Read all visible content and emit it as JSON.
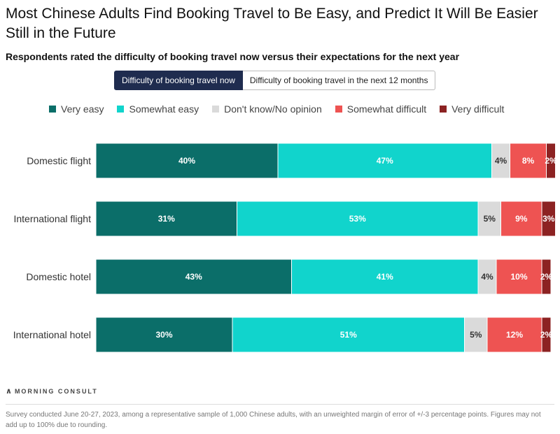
{
  "title": "Most Chinese Adults Find Booking Travel to Be Easy, and Predict It Will Be Easier Still in the Future",
  "subtitle": "Respondents rated the difficulty of booking travel now versus their expectations for the next year",
  "tabs": [
    {
      "label": "Difficulty of booking travel now",
      "active": true
    },
    {
      "label": "Difficulty of booking travel in the next 12 months",
      "active": false
    }
  ],
  "chart_data": {
    "type": "bar",
    "orientation": "horizontal",
    "stacked": true,
    "categories": [
      "Domestic flight",
      "International flight",
      "Domestic hotel",
      "International hotel"
    ],
    "series": [
      {
        "name": "Very easy",
        "color": "#0b6e69",
        "values": [
          40,
          31,
          43,
          30
        ]
      },
      {
        "name": "Somewhat easy",
        "color": "#11d4cc",
        "values": [
          47,
          53,
          41,
          51
        ]
      },
      {
        "name": "Don't know/No opinion",
        "color": "#dadada",
        "values": [
          4,
          5,
          4,
          5
        ]
      },
      {
        "name": "Somewhat difficult",
        "color": "#ee5352",
        "values": [
          8,
          9,
          10,
          12
        ]
      },
      {
        "name": "Very difficult",
        "color": "#8c2222",
        "values": [
          2,
          3,
          2,
          2
        ]
      }
    ],
    "value_suffix": "%",
    "legend_position": "top",
    "xlim": [
      0,
      100
    ],
    "grid": false
  },
  "brand": "MORNING CONSULT",
  "footnote": "Survey conducted June 20-27, 2023, among a representative sample of 1,000 Chinese adults, with an unweighted margin of error of +/-3 percentage points. Figures may not add up to 100% due to rounding."
}
